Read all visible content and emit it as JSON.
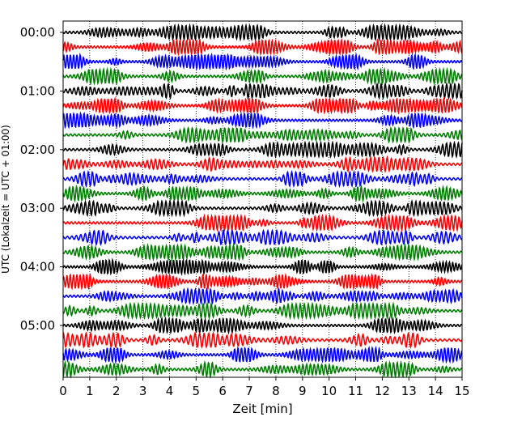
{
  "chart_data": {
    "type": "line",
    "title": "",
    "xlabel": "Zeit  [min]",
    "ylabel": "UTC (Lokalzeit = UTC + 01:00)",
    "xlim": [
      0,
      15
    ],
    "x_ticks": [
      "0",
      "1",
      "2",
      "3",
      "4",
      "5",
      "6",
      "7",
      "8",
      "9",
      "10",
      "11",
      "12",
      "13",
      "14",
      "15"
    ],
    "y_ticks": [
      "00:00",
      "01:00",
      "02:00",
      "03:00",
      "04:00",
      "05:00"
    ],
    "grid": "vertical dotted lines at each minute",
    "trace_colors": [
      "#000000",
      "#ff0000",
      "#0000ff",
      "#008000"
    ],
    "trace_count": 24,
    "trace_interval_minutes": 15
  }
}
